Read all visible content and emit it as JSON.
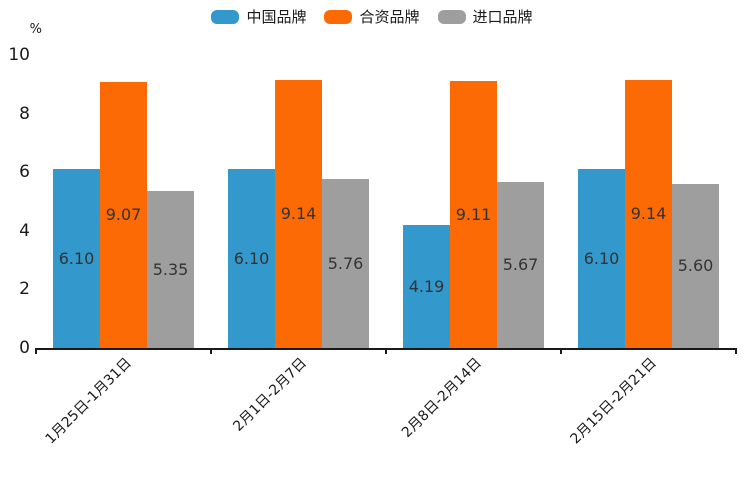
{
  "chart_data": {
    "type": "bar",
    "title": "",
    "ylabel": "%",
    "xlabel": "",
    "ylim": [
      0,
      10
    ],
    "yticks": [
      0,
      2,
      4,
      6,
      8,
      10
    ],
    "grid": false,
    "legend_position": "top",
    "categories": [
      "1月25日-1月31日",
      "2月1日-2月7日",
      "2月8日-2月14日",
      "2月15日-2月21日"
    ],
    "series": [
      {
        "name": "中国品牌",
        "color": "#3398CB",
        "values": [
          6.1,
          6.1,
          4.19,
          6.1
        ],
        "labels": [
          "6.10",
          "6.10",
          "4.19",
          "6.10"
        ]
      },
      {
        "name": "合资品牌",
        "color": "#FC6A05",
        "values": [
          9.07,
          9.14,
          9.11,
          9.14
        ],
        "labels": [
          "9.07",
          "9.14",
          "9.11",
          "9.14"
        ]
      },
      {
        "name": "进口品牌",
        "color": "#9E9E9E",
        "values": [
          5.35,
          5.76,
          5.67,
          5.6
        ],
        "labels": [
          "5.35",
          "5.76",
          "5.67",
          "5.60"
        ]
      }
    ],
    "colors": {
      "axis": "#1a1a1a",
      "tick_label": "#1a1a1a",
      "value_label": "#333333",
      "background": "#ffffff"
    }
  }
}
